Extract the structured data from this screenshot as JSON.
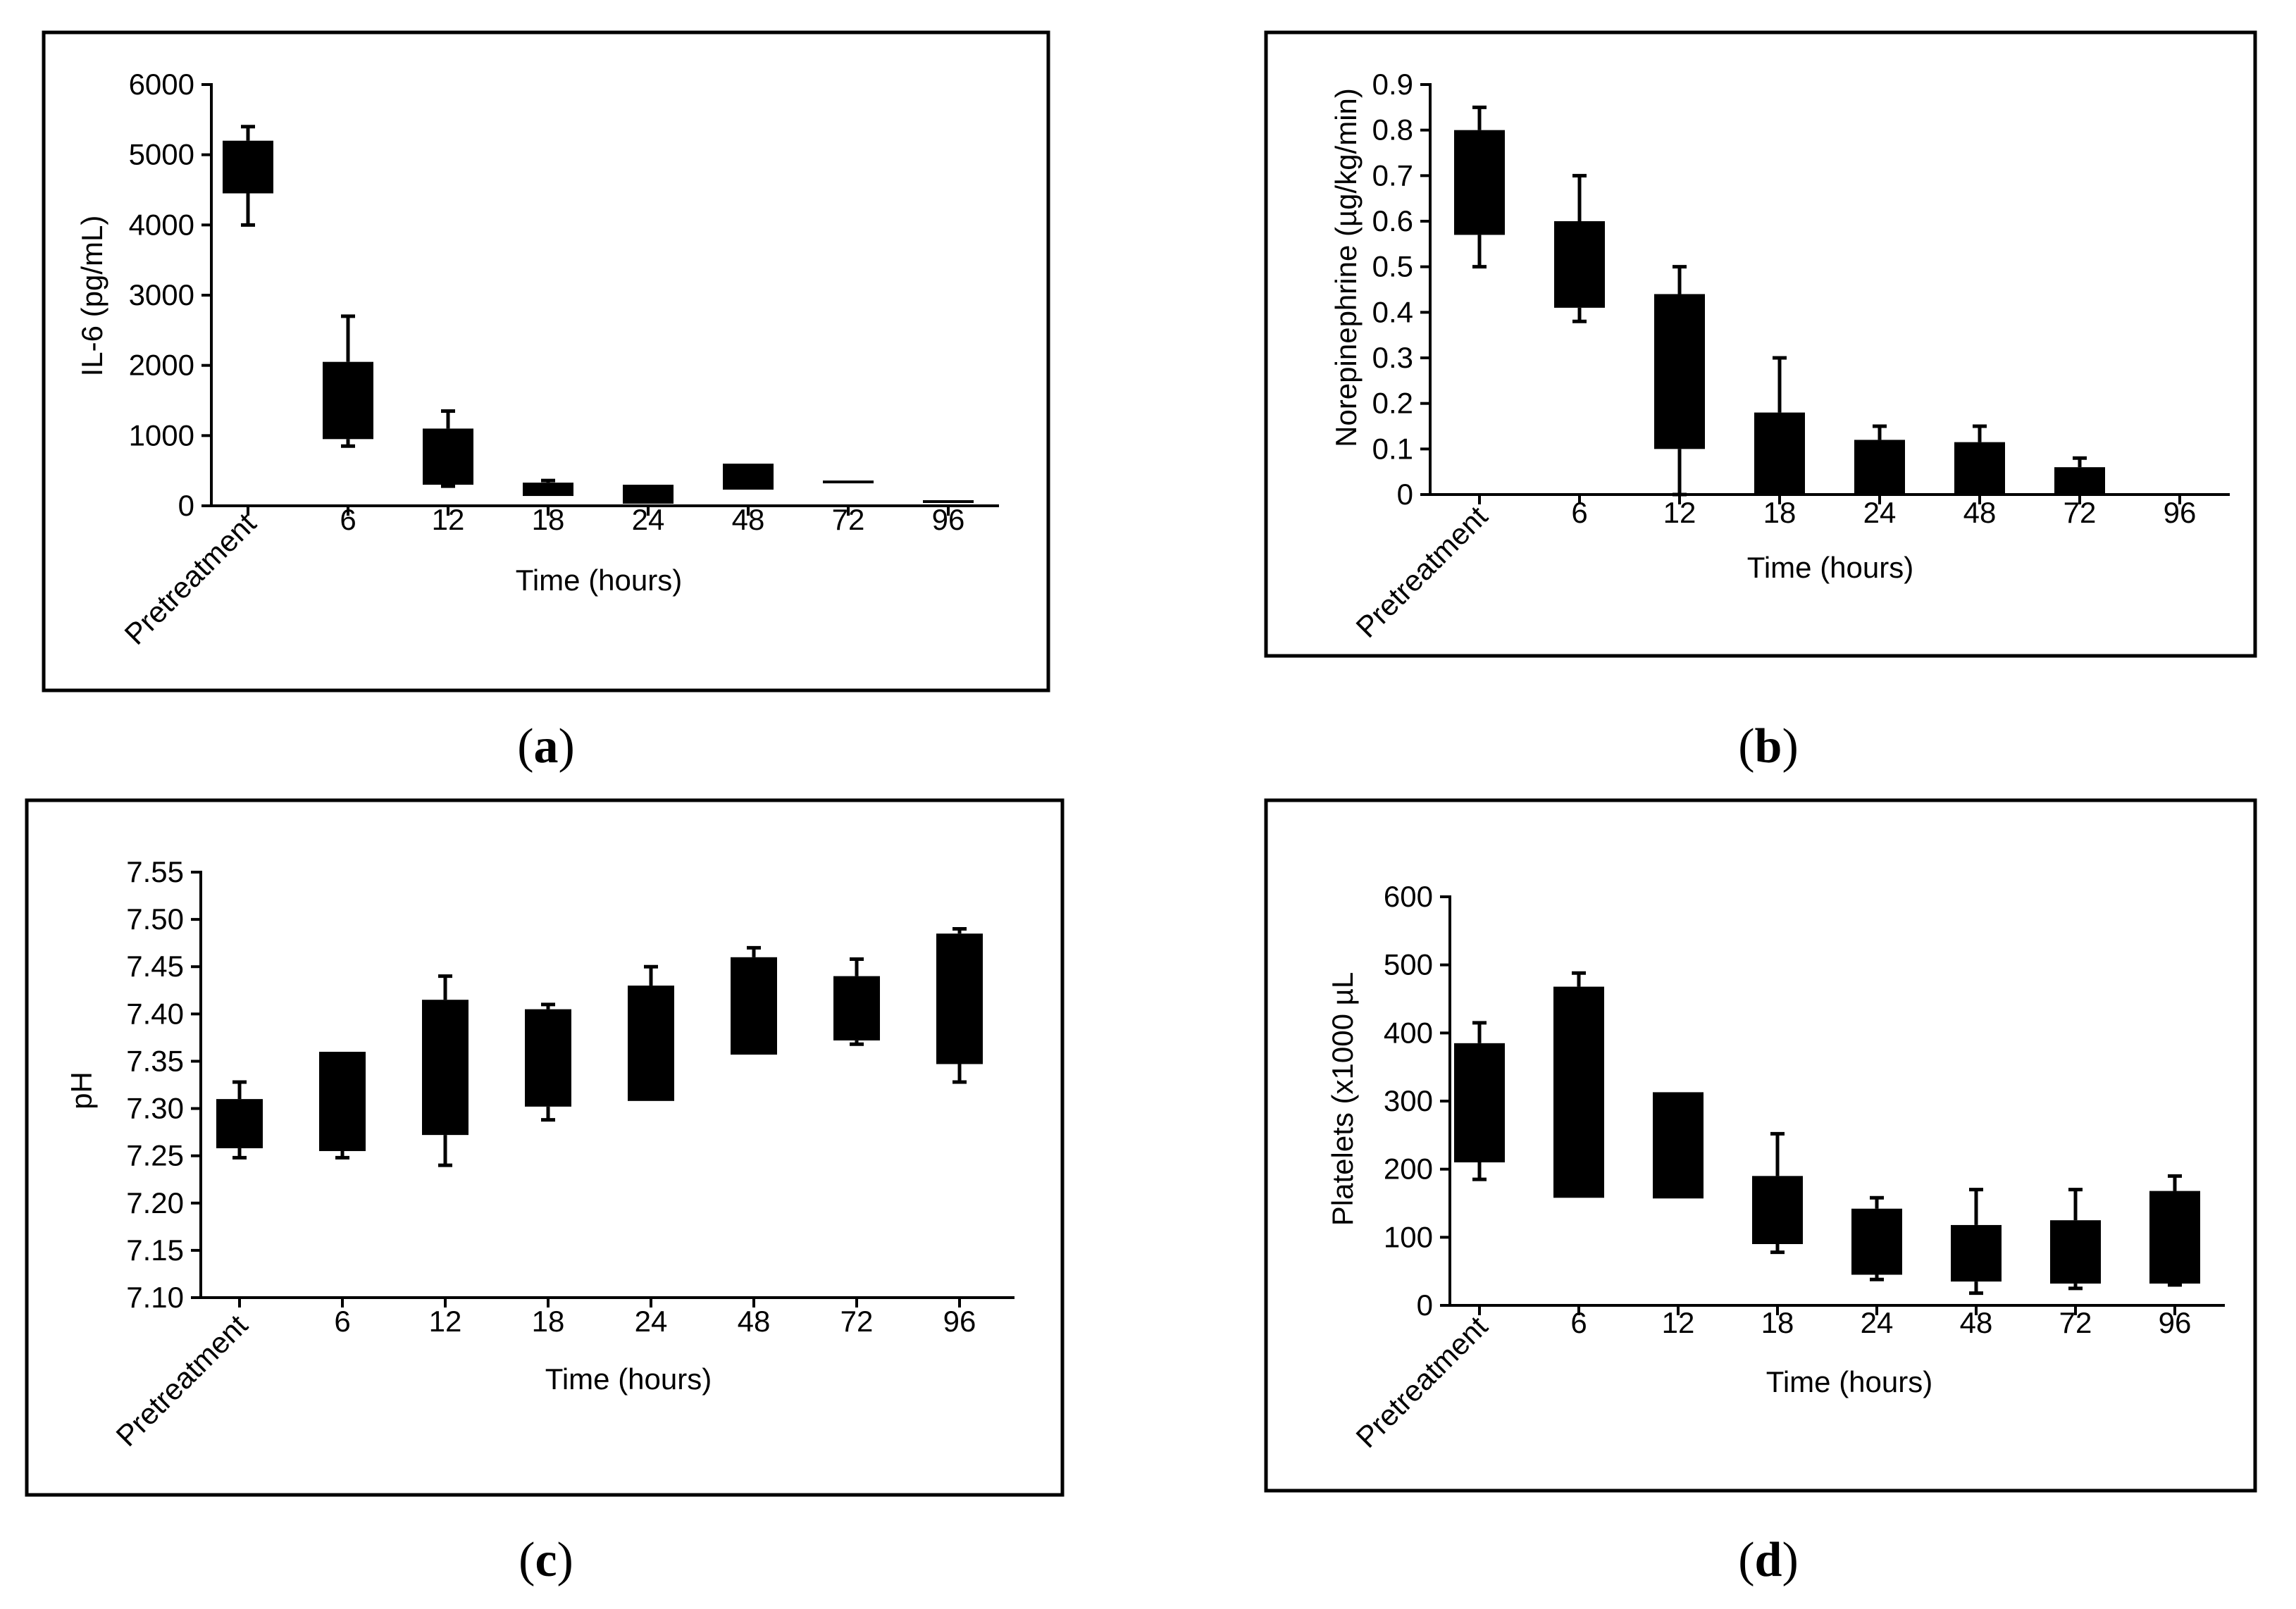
{
  "chart_data": [
    {
      "id": "a",
      "type": "box",
      "panel_label": "a",
      "title": "",
      "xlabel": "Time (hours)",
      "ylabel": "IL-6 (pg/mL)",
      "categories": [
        "Pretreatment",
        "6",
        "12",
        "18",
        "24",
        "48",
        "72",
        "96"
      ],
      "ylim": [
        0,
        6000
      ],
      "yticks": [
        "0",
        "1000",
        "2000",
        "3000",
        "4000",
        "5000",
        "6000"
      ],
      "ytick_values": [
        0,
        1000,
        2000,
        3000,
        4000,
        5000,
        6000
      ],
      "boxes": [
        {
          "q1": 4450,
          "q3": 5200,
          "whisker_low": 4000,
          "whisker_high": 5400
        },
        {
          "q1": 950,
          "q3": 2050,
          "whisker_low": 850,
          "whisker_high": 2700
        },
        {
          "q1": 300,
          "q3": 1100,
          "whisker_low": 280,
          "whisker_high": 1350
        },
        {
          "q1": 140,
          "q3": 330,
          "whisker_low": 140,
          "whisker_high": 360
        },
        {
          "q1": 30,
          "q3": 300,
          "whisker_low": 30,
          "whisker_high": 300
        },
        {
          "q1": 230,
          "q3": 600,
          "whisker_low": 230,
          "whisker_high": 600
        },
        {
          "q1": 320,
          "q3": 360,
          "whisker_low": 320,
          "whisker_high": 360
        },
        {
          "q1": 40,
          "q3": 80,
          "whisker_low": 40,
          "whisker_high": 80
        }
      ]
    },
    {
      "id": "b",
      "type": "box",
      "panel_label": "b",
      "title": "",
      "xlabel": "Time (hours)",
      "ylabel": "Norepinephrine (µg/kg/min)",
      "categories": [
        "Pretreatment",
        "6",
        "12",
        "18",
        "24",
        "48",
        "72",
        "96"
      ],
      "ylim": [
        0,
        0.9
      ],
      "yticks": [
        "0",
        "0.1",
        "0.2",
        "0.3",
        "0.4",
        "0.5",
        "0.6",
        "0.7",
        "0.8",
        "0.9"
      ],
      "ytick_values": [
        0,
        0.1,
        0.2,
        0.3,
        0.4,
        0.5,
        0.6,
        0.7,
        0.8,
        0.9
      ],
      "boxes": [
        {
          "q1": 0.57,
          "q3": 0.8,
          "whisker_low": 0.5,
          "whisker_high": 0.85
        },
        {
          "q1": 0.41,
          "q3": 0.6,
          "whisker_low": 0.38,
          "whisker_high": 0.7
        },
        {
          "q1": 0.1,
          "q3": 0.44,
          "whisker_low": 0.0,
          "whisker_high": 0.5
        },
        {
          "q1": 0.0,
          "q3": 0.18,
          "whisker_low": 0.0,
          "whisker_high": 0.3
        },
        {
          "q1": 0.0,
          "q3": 0.12,
          "whisker_low": 0.0,
          "whisker_high": 0.15
        },
        {
          "q1": 0.0,
          "q3": 0.115,
          "whisker_low": 0.0,
          "whisker_high": 0.15
        },
        {
          "q1": 0.0,
          "q3": 0.06,
          "whisker_low": 0.0,
          "whisker_high": 0.08
        },
        {
          "q1": 0.0,
          "q3": 0.0,
          "whisker_low": 0.0,
          "whisker_high": 0.0
        }
      ]
    },
    {
      "id": "c",
      "type": "box",
      "panel_label": "c",
      "title": "",
      "xlabel": "Time (hours)",
      "ylabel": "pH",
      "categories": [
        "Pretreatment",
        "6",
        "12",
        "18",
        "24",
        "48",
        "72",
        "96"
      ],
      "ylim": [
        7.1,
        7.55
      ],
      "yticks": [
        "7.10",
        "7.15",
        "7.20",
        "7.25",
        "7.30",
        "7.35",
        "7.40",
        "7.45",
        "7.50",
        "7.55"
      ],
      "ytick_values": [
        7.1,
        7.15,
        7.2,
        7.25,
        7.3,
        7.35,
        7.4,
        7.45,
        7.5,
        7.55
      ],
      "boxes": [
        {
          "q1": 7.258,
          "q3": 7.31,
          "whisker_low": 7.248,
          "whisker_high": 7.328
        },
        {
          "q1": 7.255,
          "q3": 7.36,
          "whisker_low": 7.248,
          "whisker_high": 7.36
        },
        {
          "q1": 7.272,
          "q3": 7.415,
          "whisker_low": 7.24,
          "whisker_high": 7.44
        },
        {
          "q1": 7.302,
          "q3": 7.405,
          "whisker_low": 7.288,
          "whisker_high": 7.41
        },
        {
          "q1": 7.308,
          "q3": 7.43,
          "whisker_low": 7.308,
          "whisker_high": 7.45
        },
        {
          "q1": 7.357,
          "q3": 7.46,
          "whisker_low": 7.357,
          "whisker_high": 7.47
        },
        {
          "q1": 7.372,
          "q3": 7.44,
          "whisker_low": 7.368,
          "whisker_high": 7.458
        },
        {
          "q1": 7.347,
          "q3": 7.485,
          "whisker_low": 7.328,
          "whisker_high": 7.49
        }
      ]
    },
    {
      "id": "d",
      "type": "box",
      "panel_label": "d",
      "title": "",
      "xlabel": "Time (hours)",
      "ylabel": "Platelets (x1000 µL",
      "categories": [
        "Pretreatment",
        "6",
        "12",
        "18",
        "24",
        "48",
        "72",
        "96"
      ],
      "ylim": [
        0,
        600
      ],
      "yticks": [
        "0",
        "100",
        "200",
        "300",
        "400",
        "500",
        "600"
      ],
      "ytick_values": [
        0,
        100,
        200,
        300,
        400,
        500,
        600
      ],
      "boxes": [
        {
          "q1": 210,
          "q3": 385,
          "whisker_low": 185,
          "whisker_high": 415
        },
        {
          "q1": 158,
          "q3": 468,
          "whisker_low": 158,
          "whisker_high": 488
        },
        {
          "q1": 157,
          "q3": 313,
          "whisker_low": 157,
          "whisker_high": 313
        },
        {
          "q1": 90,
          "q3": 190,
          "whisker_low": 78,
          "whisker_high": 252
        },
        {
          "q1": 45,
          "q3": 142,
          "whisker_low": 38,
          "whisker_high": 158
        },
        {
          "q1": 35,
          "q3": 118,
          "whisker_low": 18,
          "whisker_high": 170
        },
        {
          "q1": 32,
          "q3": 125,
          "whisker_low": 25,
          "whisker_high": 170
        },
        {
          "q1": 32,
          "q3": 168,
          "whisker_low": 30,
          "whisker_high": 190
        }
      ]
    }
  ]
}
